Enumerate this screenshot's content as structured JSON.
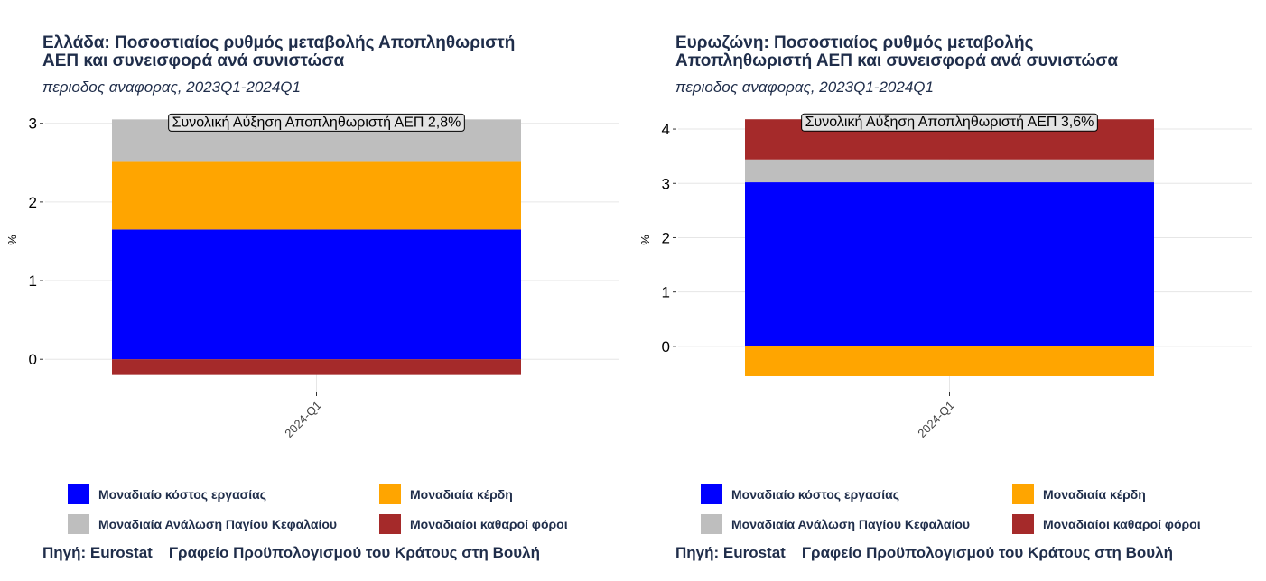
{
  "chart_data": [
    {
      "type": "bar",
      "stacked": true,
      "title": "Ελλάδα: Ποσοστιαίος ρυθμός μεταβολής Αποπληθωριστή ΑΕΠ και συνεισφορά ανά συνιστώσα",
      "subtitle": "περιοδος αναφορας, 2023Q1-2024Q1",
      "annotation": "Συνολική Αύξηση Αποπληθωριστή ΑΕΠ 2,8%",
      "xlabel": "",
      "ylabel": "%",
      "categories": [
        "2024-Q1"
      ],
      "ylim": [
        -0.25,
        3.1
      ],
      "yticks": [
        0,
        1,
        2,
        3
      ],
      "grid": true,
      "legend_position": "bottom",
      "series": [
        {
          "name": "Μοναδιαίο κόστος εργασίας",
          "color": "#0000ff",
          "values": [
            1.65
          ]
        },
        {
          "name": "Μοναδιαία κέρδη",
          "color": "#ffa500",
          "values": [
            0.86
          ]
        },
        {
          "name": "Μοναδιαία Ανάλωση Παγίου Κεφαλαίου",
          "color": "#bebebe",
          "values": [
            0.54
          ]
        },
        {
          "name": "Μοναδιαίοι καθαροί φόροι",
          "color": "#a52a2a",
          "values": [
            -0.2
          ]
        }
      ]
    },
    {
      "type": "bar",
      "stacked": true,
      "title": "Ευρωζώνη: Ποσοστιαίος ρυθμός μεταβολής Αποπληθωριστή ΑΕΠ και συνεισφορά ανά συνιστώσα",
      "subtitle": "περιοδος αναφορας, 2023Q1-2024Q1",
      "annotation": "Συνολική Αύξηση Αποπληθωριστή ΑΕΠ 3,6%",
      "xlabel": "",
      "ylabel": "%",
      "categories": [
        "2024-Q1"
      ],
      "ylim": [
        -0.6,
        4.25
      ],
      "yticks": [
        0,
        1,
        2,
        3,
        4
      ],
      "grid": true,
      "legend_position": "bottom",
      "series": [
        {
          "name": "Μοναδιαίο κόστος εργασίας",
          "color": "#0000ff",
          "values": [
            3.02
          ]
        },
        {
          "name": "Μοναδιαία κέρδη",
          "color": "#ffa500",
          "values": [
            -0.55
          ]
        },
        {
          "name": "Μοναδιαία Ανάλωση Παγίου Κεφαλαίου",
          "color": "#bebebe",
          "values": [
            0.42
          ]
        },
        {
          "name": "Μοναδιαίοι καθαροί φόροι",
          "color": "#a52a2a",
          "values": [
            0.74
          ]
        }
      ]
    }
  ],
  "panels": [
    {
      "title_line1": "Ελλάδα: Ποσοστιαίος ρυθμός μεταβολής Αποπληθωριστή",
      "title_line2": "ΑΕΠ και συνεισφορά ανά συνιστώσα",
      "subtitle": "περιοδος αναφορας, 2023Q1-2024Q1",
      "source_label": "Πηγή: Eurostat",
      "source_org": "Γραφείο Προϋπολογισμού του Κράτους στη Βουλή"
    },
    {
      "title_line1": "Ευρωζώνη: Ποσοστιαίος ρυθμός μεταβολής",
      "title_line2": "Αποπληθωριστή ΑΕΠ και συνεισφορά ανά συνιστώσα",
      "subtitle": "περιοδος αναφορας, 2023Q1-2024Q1",
      "source_label": "Πηγή: Eurostat",
      "source_org": "Γραφείο Προϋπολογισμού του Κράτους στη Βουλή"
    }
  ],
  "legend": [
    {
      "name": "Μοναδιαίο κόστος εργασίας",
      "color": "#0000ff"
    },
    {
      "name": "Μοναδιαία κέρδη",
      "color": "#ffa500"
    },
    {
      "name": "Μοναδιαία Ανάλωση Παγίου Κεφαλαίου",
      "color": "#bebebe"
    },
    {
      "name": "Μοναδιαίοι καθαροί φόροι",
      "color": "#a52a2a"
    }
  ],
  "colors": {
    "text": "#1f2d4a",
    "grid": "#e6e6e6",
    "axis_text": "#333333"
  }
}
